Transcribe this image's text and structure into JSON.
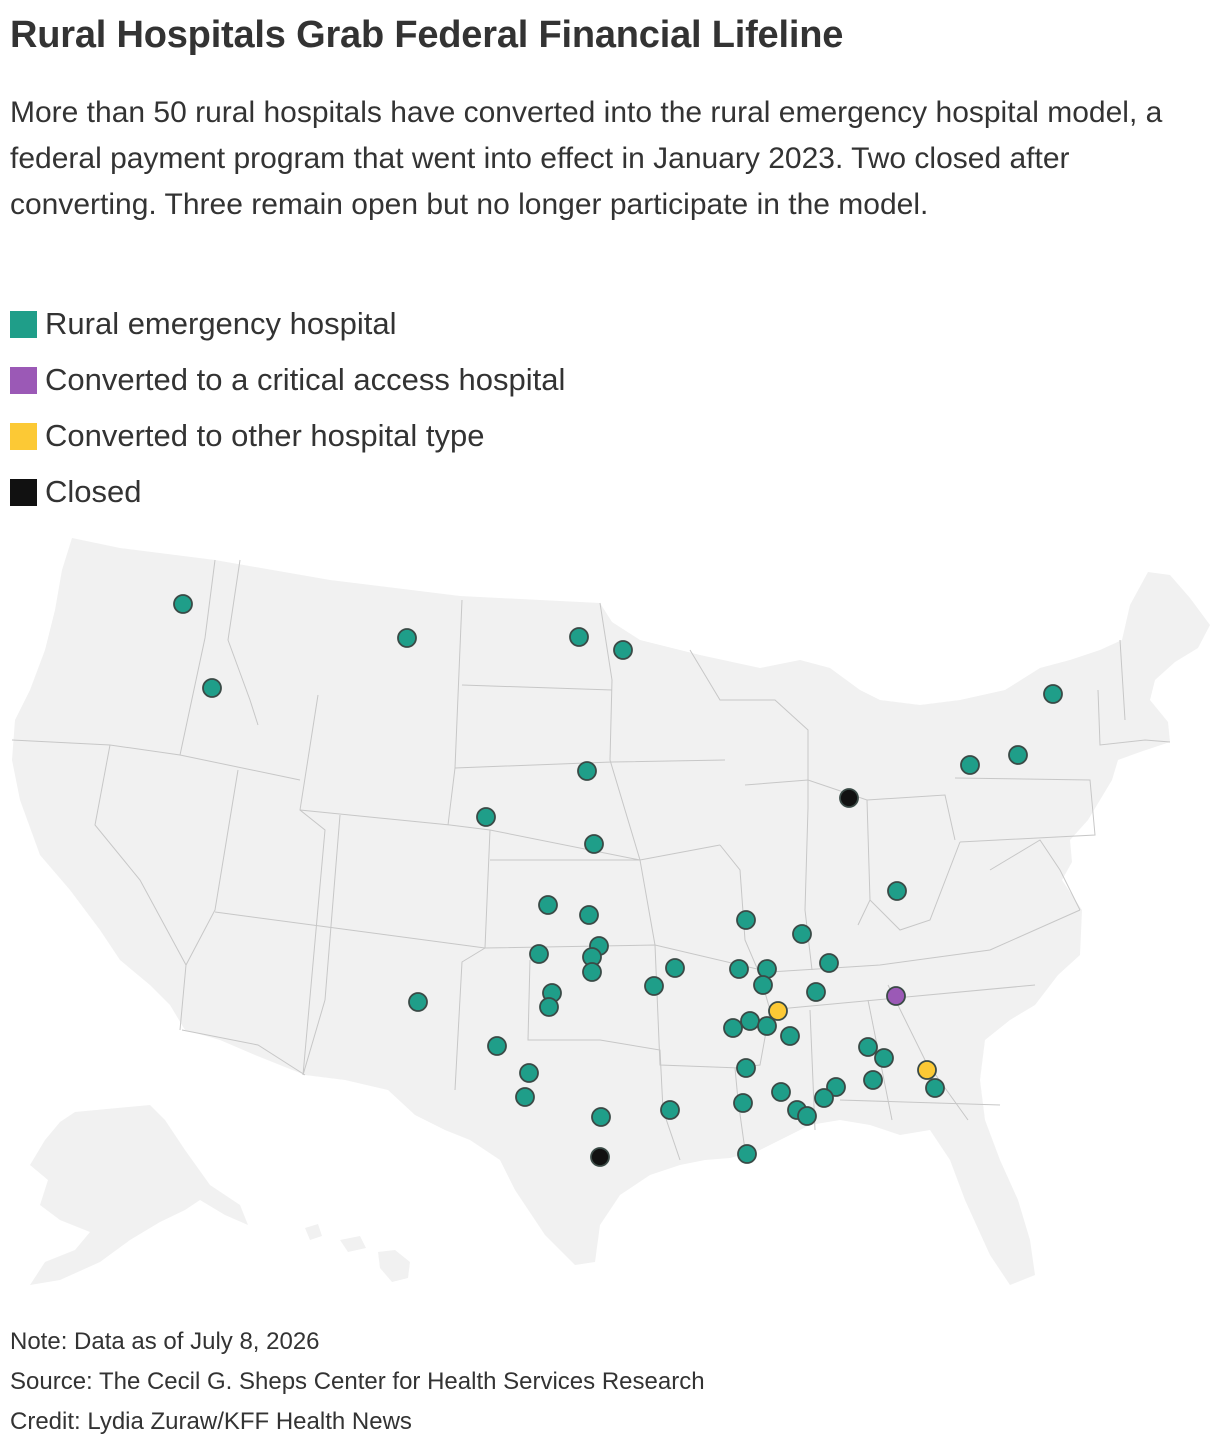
{
  "header": {
    "title": "Rural Hospitals Grab Federal Financial Lifeline",
    "subtitle": "More than 50 rural hospitals have converted into the rural emergency hospital model, a federal payment program that went into effect in January 2023. Two closed after converting. Three remain open but no longer participate in the model."
  },
  "legend": {
    "items": [
      {
        "label": "Rural emergency hospital",
        "color": "#1f9e89"
      },
      {
        "label": "Converted to a critical access hospital",
        "color": "#9b59b6"
      },
      {
        "label": "Converted to other hospital type",
        "color": "#fcc935"
      },
      {
        "label": "Closed",
        "color": "#111111"
      }
    ]
  },
  "map": {
    "land_color": "#f1f1f1",
    "border_color": "#c7c7c7",
    "marker_stroke": "#3a4a46",
    "hospital_counts": {
      "Rural emergency hospital": 55,
      "Converted to a critical access hospital": 1,
      "Converted to other hospital type": 2,
      "Closed": 2
    }
  },
  "footer": {
    "note": "Note: Data as of July 8, 2026",
    "source": "Source: The Cecil G. Sheps Center for Health Services Research",
    "credit": "Credit: Lydia Zuraw/KFF Health News"
  }
}
